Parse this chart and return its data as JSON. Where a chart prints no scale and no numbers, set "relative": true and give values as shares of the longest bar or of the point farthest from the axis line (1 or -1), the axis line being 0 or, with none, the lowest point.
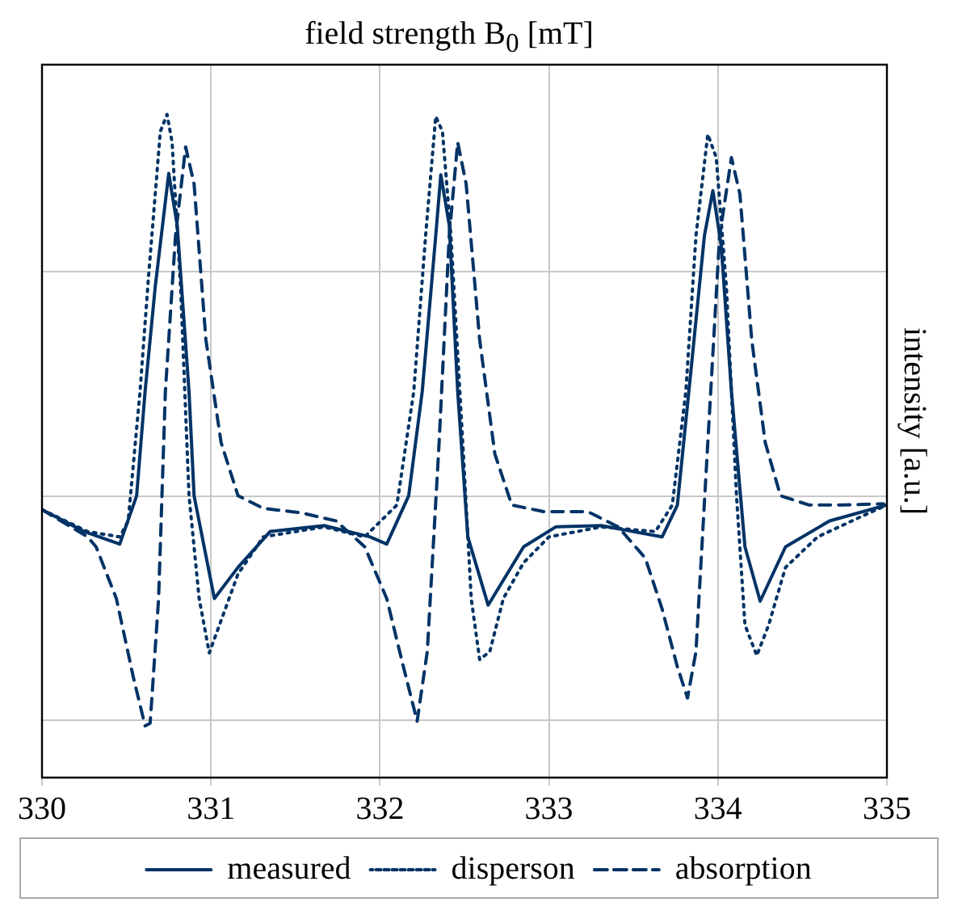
{
  "chart_data": {
    "type": "line",
    "xlabel": "field strength B$_{0}$ [mT]",
    "ylabel": "intensity [a.u.]",
    "relative": true,
    "xlim": [
      330,
      335
    ],
    "xticks": [
      330,
      331,
      332,
      333,
      334,
      335
    ],
    "grid": true,
    "legend": "bottom",
    "marker": "none",
    "series": [
      {
        "name": "measured",
        "color": "#003366",
        "line_style": "solid",
        "x": [
          330,
          330.25,
          330.46,
          330.56,
          330.61,
          330.67,
          330.75,
          330.8,
          330.87,
          330.9,
          331.02,
          331.16,
          331.35,
          331.67,
          331.94,
          332.04,
          332.17,
          332.25,
          332.33,
          332.36,
          332.41,
          332.46,
          332.52,
          332.64,
          332.85,
          333.04,
          333.31,
          333.67,
          333.76,
          333.84,
          333.92,
          333.97,
          334.02,
          334.08,
          334.16,
          334.25,
          334.4,
          334.66,
          335
        ],
        "values": [
          0.404,
          0.371,
          0.352,
          0.425,
          0.582,
          0.74,
          0.911,
          0.833,
          0.582,
          0.425,
          0.27,
          0.317,
          0.371,
          0.38,
          0.363,
          0.352,
          0.425,
          0.582,
          0.817,
          0.909,
          0.833,
          0.582,
          0.363,
          0.26,
          0.348,
          0.378,
          0.38,
          0.363,
          0.411,
          0.613,
          0.817,
          0.885,
          0.801,
          0.582,
          0.348,
          0.266,
          0.348,
          0.387,
          0.411
        ]
      },
      {
        "name": "disperson",
        "color": "#003366",
        "line_style": "dotted",
        "x": [
          330,
          330.27,
          330.46,
          330.51,
          330.58,
          330.63,
          330.7,
          330.74,
          330.77,
          330.82,
          330.87,
          330.93,
          330.99,
          331.06,
          331.16,
          331.31,
          331.67,
          331.91,
          332.1,
          332.2,
          332.27,
          332.33,
          332.37,
          332.42,
          332.49,
          332.54,
          332.59,
          332.65,
          332.73,
          332.85,
          333.0,
          333.31,
          333.63,
          333.73,
          333.81,
          333.87,
          333.94,
          333.99,
          334.05,
          334.11,
          334.16,
          334.23,
          334.3,
          334.4,
          334.59,
          334.86,
          335
        ],
        "values": [
          0.404,
          0.371,
          0.363,
          0.387,
          0.582,
          0.754,
          0.974,
          1.0,
          0.958,
          0.74,
          0.425,
          0.27,
          0.188,
          0.237,
          0.307,
          0.363,
          0.378,
          0.363,
          0.411,
          0.582,
          0.817,
          0.997,
          0.974,
          0.817,
          0.505,
          0.27,
          0.178,
          0.19,
          0.27,
          0.324,
          0.363,
          0.378,
          0.371,
          0.411,
          0.582,
          0.817,
          0.97,
          0.935,
          0.74,
          0.425,
          0.23,
          0.184,
          0.23,
          0.317,
          0.363,
          0.395,
          0.411
        ]
      },
      {
        "name": "absorption",
        "color": "#003366",
        "line_style": "dashed",
        "x": [
          330,
          330.27,
          330.32,
          330.44,
          330.54,
          330.61,
          330.64,
          330.69,
          330.73,
          330.79,
          330.85,
          330.9,
          330.97,
          331.06,
          331.16,
          331.31,
          331.54,
          331.74,
          331.91,
          332.04,
          332.13,
          332.22,
          332.28,
          332.35,
          332.41,
          332.46,
          332.51,
          332.59,
          332.68,
          332.78,
          332.97,
          333.23,
          333.41,
          333.57,
          333.67,
          333.76,
          333.82,
          333.87,
          333.94,
          334.01,
          334.08,
          334.13,
          334.2,
          334.28,
          334.37,
          334.54,
          334.73,
          334.98
        ],
        "values": [
          0.404,
          0.363,
          0.348,
          0.27,
          0.152,
          0.078,
          0.082,
          0.27,
          0.582,
          0.817,
          0.951,
          0.895,
          0.66,
          0.505,
          0.425,
          0.406,
          0.399,
          0.387,
          0.348,
          0.27,
          0.176,
          0.085,
          0.19,
          0.505,
          0.817,
          0.958,
          0.895,
          0.66,
          0.488,
          0.411,
          0.401,
          0.401,
          0.378,
          0.331,
          0.254,
          0.167,
          0.12,
          0.19,
          0.505,
          0.817,
          0.935,
          0.88,
          0.66,
          0.505,
          0.425,
          0.411,
          0.411,
          0.413
        ]
      }
    ]
  }
}
